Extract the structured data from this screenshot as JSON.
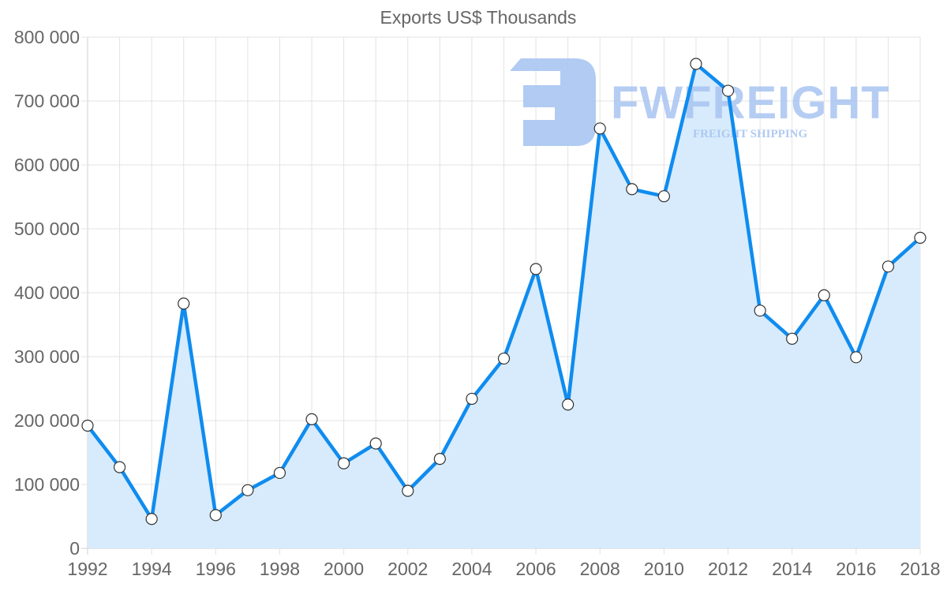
{
  "chart_data": {
    "type": "line",
    "title": "Exports US$ Thousands",
    "xlabel": "",
    "ylabel": "",
    "x": [
      1992,
      1993,
      1994,
      1995,
      1996,
      1997,
      1998,
      1999,
      2000,
      2001,
      2002,
      2003,
      2004,
      2005,
      2006,
      2007,
      2008,
      2009,
      2010,
      2011,
      2012,
      2013,
      2014,
      2015,
      2016,
      2017,
      2018
    ],
    "series": [
      {
        "name": "Exports US$ Thousands",
        "values": [
          192000,
          127000,
          46000,
          383000,
          52000,
          91000,
          118000,
          202000,
          133000,
          164000,
          90000,
          140000,
          234000,
          297000,
          437000,
          225000,
          657000,
          562000,
          551000,
          758000,
          716000,
          372000,
          328000,
          396000,
          299000,
          441000,
          486000
        ],
        "color": "#0f8cef",
        "fill": "#d7ebfc"
      }
    ],
    "xlim": [
      1992,
      2018
    ],
    "ylim": [
      0,
      800000
    ],
    "x_tick_labels": [
      "1992",
      "1994",
      "1996",
      "1998",
      "2000",
      "2002",
      "2004",
      "2006",
      "2008",
      "2010",
      "2012",
      "2014",
      "2016",
      "2018"
    ],
    "y_tick_labels": [
      "0",
      "100 000",
      "200 000",
      "300 000",
      "400 000",
      "500 000",
      "600 000",
      "700 000",
      "800 000"
    ],
    "grid": true,
    "legend": null
  },
  "watermark": {
    "brand": "FWFREIGHT",
    "tagline": "FREIGHT SHIPPING",
    "color": "#a9c5f1"
  }
}
